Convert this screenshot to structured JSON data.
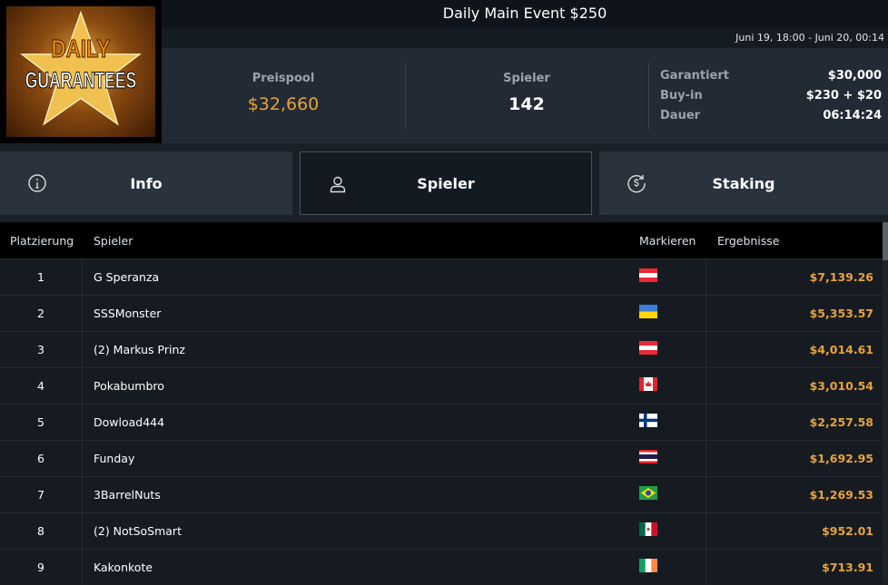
{
  "logo": {
    "line1": "DAILY",
    "line2": "GUARANTEES"
  },
  "title": "Daily Main Event $250",
  "date_range": "Juni 19, 18:00 - Juni 20, 00:14",
  "stats": {
    "prizepool_label": "Preispool",
    "prizepool": "$32,660",
    "players_label": "Spieler",
    "players": "142",
    "details": [
      {
        "k": "Garantiert",
        "v": "$30,000"
      },
      {
        "k": "Buy-in",
        "v": "$230 + $20"
      },
      {
        "k": "Dauer",
        "v": "06:14:24"
      }
    ]
  },
  "tabs": [
    {
      "label": "Info",
      "icon": "info-icon"
    },
    {
      "label": "Spieler",
      "icon": "user-icon",
      "active": true
    },
    {
      "label": "Staking",
      "icon": "dollar-cycle-icon"
    }
  ],
  "colors": {
    "accent": "#e8a33a"
  },
  "table": {
    "headers": [
      "Platzierung",
      "Spieler",
      "Markieren",
      "Ergebnisse"
    ],
    "rows": [
      {
        "place": "1",
        "player": "G Speranza",
        "flag": "austria",
        "result": "$7,139.26"
      },
      {
        "place": "2",
        "player": "SSSMonster",
        "flag": "ukraine",
        "result": "$5,353.57"
      },
      {
        "place": "3",
        "player": "(2) Markus Prinz",
        "flag": "austria",
        "result": "$4,014.61"
      },
      {
        "place": "4",
        "player": "Pokabumbro",
        "flag": "canada",
        "result": "$3,010.54"
      },
      {
        "place": "5",
        "player": "Dowload444",
        "flag": "finland",
        "result": "$2,257.58"
      },
      {
        "place": "6",
        "player": "Funday",
        "flag": "thailand",
        "result": "$1,692.95"
      },
      {
        "place": "7",
        "player": "3BarrelNuts",
        "flag": "brazil",
        "result": "$1,269.53"
      },
      {
        "place": "8",
        "player": "(2) NotSoSmart",
        "flag": "mexico",
        "result": "$952.01"
      },
      {
        "place": "9",
        "player": "Kakonkote",
        "flag": "ireland",
        "result": "$713.91"
      }
    ]
  }
}
